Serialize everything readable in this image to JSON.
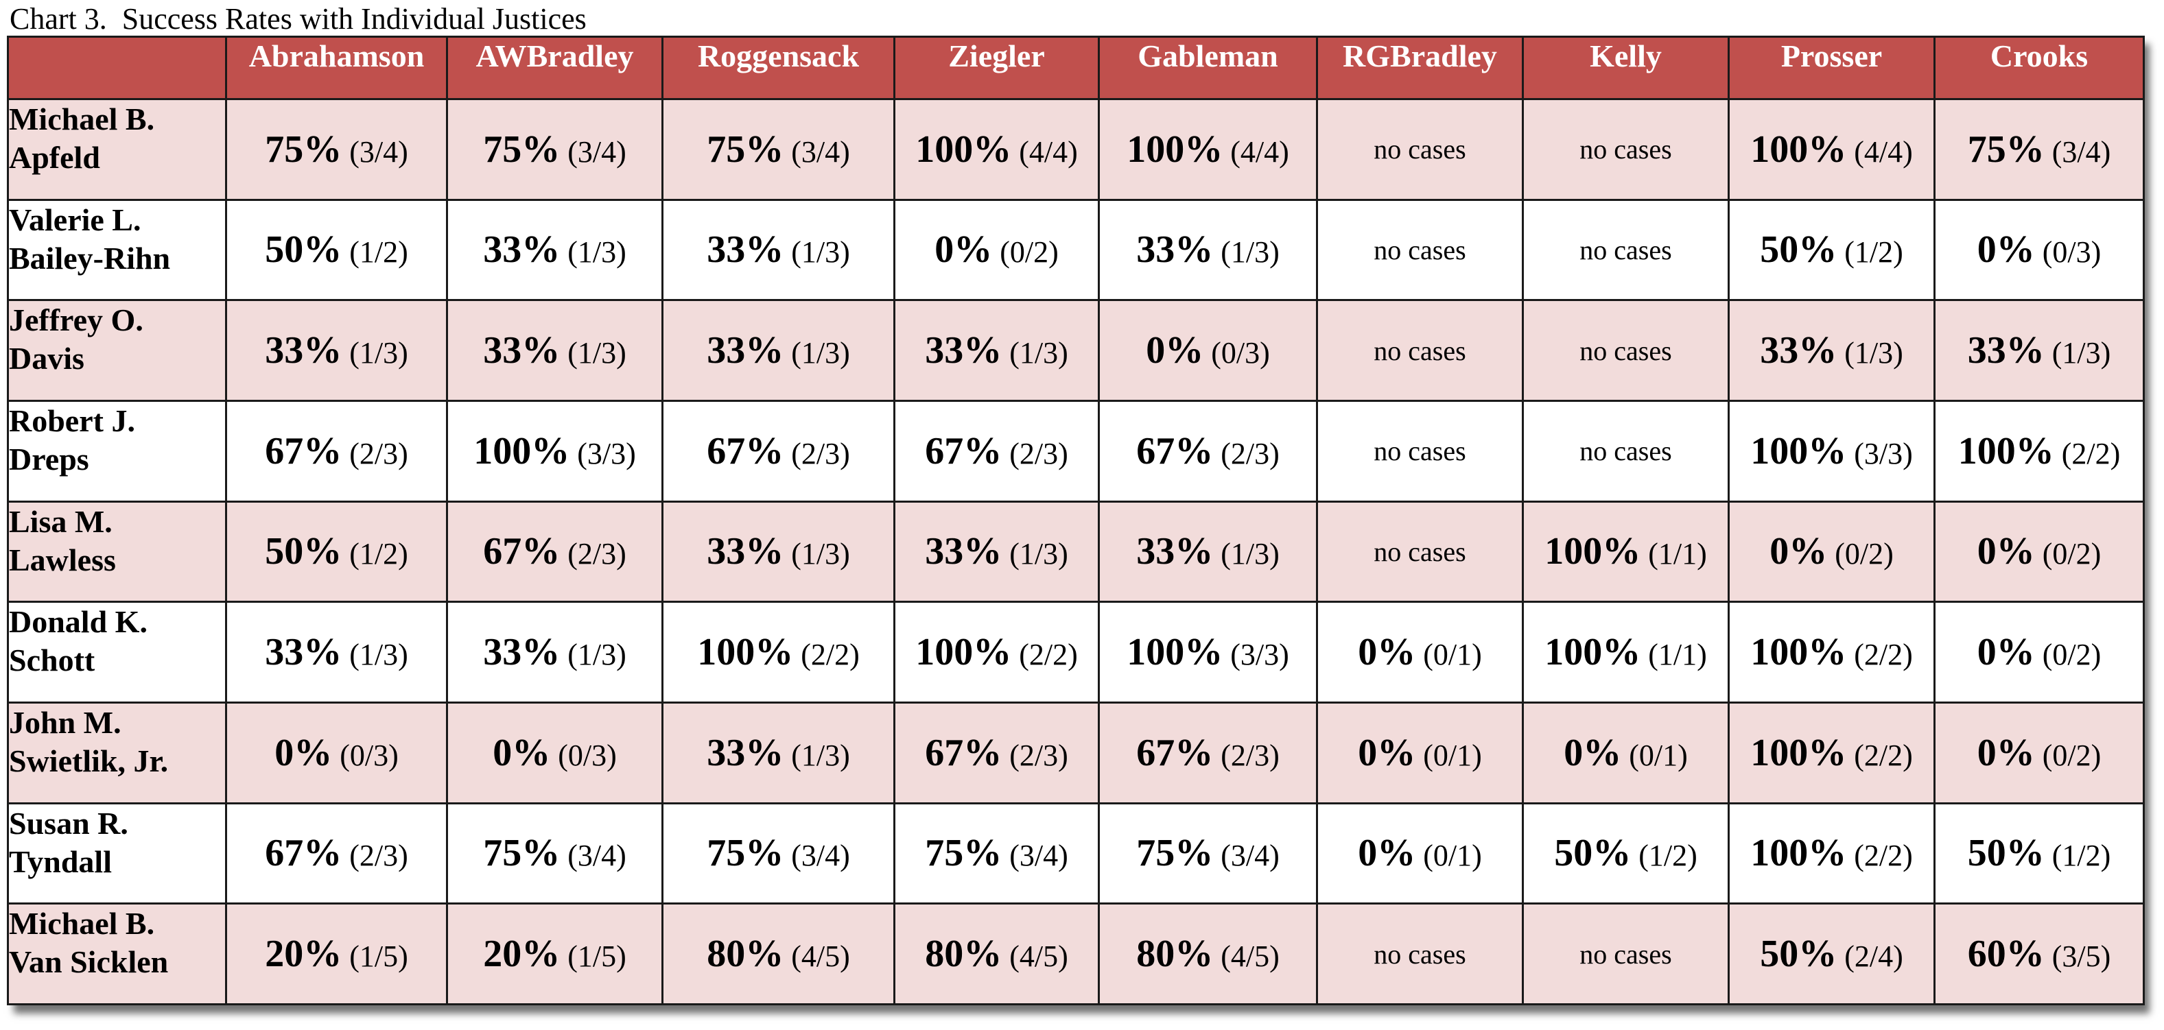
{
  "chart_data": {
    "type": "table",
    "title": "Chart 3.  Success Rates with Individual Justices",
    "columns": [
      "Abrahamson",
      "AWBradley",
      "Roggensack",
      "Ziegler",
      "Gableman",
      "RGBradley",
      "Kelly",
      "Prosser",
      "Crooks"
    ],
    "rows": [
      {
        "name": [
          "Michael B.",
          "Apfeld"
        ],
        "cells": [
          {
            "pct": "75%",
            "frac": "(3/4)"
          },
          {
            "pct": "75%",
            "frac": "(3/4)"
          },
          {
            "pct": "75%",
            "frac": "(3/4)"
          },
          {
            "pct": "100%",
            "frac": "(4/4)"
          },
          {
            "pct": "100%",
            "frac": "(4/4)"
          },
          {
            "text": "no cases"
          },
          {
            "text": "no cases"
          },
          {
            "pct": "100%",
            "frac": "(4/4)"
          },
          {
            "pct": "75%",
            "frac": "(3/4)"
          }
        ]
      },
      {
        "name": [
          "Valerie L.",
          "Bailey-Rihn"
        ],
        "cells": [
          {
            "pct": "50%",
            "frac": "(1/2)"
          },
          {
            "pct": "33%",
            "frac": "(1/3)"
          },
          {
            "pct": "33%",
            "frac": "(1/3)"
          },
          {
            "pct": "0%",
            "frac": "(0/2)"
          },
          {
            "pct": "33%",
            "frac": "(1/3)"
          },
          {
            "text": "no cases"
          },
          {
            "text": "no cases"
          },
          {
            "pct": "50%",
            "frac": "(1/2)"
          },
          {
            "pct": "0%",
            "frac": "(0/3)"
          }
        ]
      },
      {
        "name": [
          "Jeffrey O.",
          "Davis"
        ],
        "cells": [
          {
            "pct": "33%",
            "frac": "(1/3)"
          },
          {
            "pct": "33%",
            "frac": "(1/3)"
          },
          {
            "pct": "33%",
            "frac": "(1/3)"
          },
          {
            "pct": "33%",
            "frac": "(1/3)"
          },
          {
            "pct": "0%",
            "frac": "(0/3)"
          },
          {
            "text": "no cases"
          },
          {
            "text": "no cases"
          },
          {
            "pct": "33%",
            "frac": "(1/3)"
          },
          {
            "pct": "33%",
            "frac": "(1/3)"
          }
        ]
      },
      {
        "name": [
          "Robert J.",
          "Dreps"
        ],
        "cells": [
          {
            "pct": "67%",
            "frac": "(2/3)"
          },
          {
            "pct": "100%",
            "frac": "(3/3)"
          },
          {
            "pct": "67%",
            "frac": "(2/3)"
          },
          {
            "pct": "67%",
            "frac": "(2/3)"
          },
          {
            "pct": "67%",
            "frac": "(2/3)"
          },
          {
            "text": "no cases"
          },
          {
            "text": "no cases"
          },
          {
            "pct": "100%",
            "frac": "(3/3)"
          },
          {
            "pct": "100%",
            "frac": "(2/2)"
          }
        ]
      },
      {
        "name": [
          "Lisa M.",
          "Lawless"
        ],
        "cells": [
          {
            "pct": "50%",
            "frac": "(1/2)"
          },
          {
            "pct": "67%",
            "frac": "(2/3)"
          },
          {
            "pct": "33%",
            "frac": "(1/3)"
          },
          {
            "pct": "33%",
            "frac": "(1/3)"
          },
          {
            "pct": "33%",
            "frac": "(1/3)"
          },
          {
            "text": "no cases"
          },
          {
            "pct": "100%",
            "frac": "(1/1)"
          },
          {
            "pct": "0%",
            "frac": "(0/2)"
          },
          {
            "pct": "0%",
            "frac": "(0/2)"
          }
        ]
      },
      {
        "name": [
          "Donald K.",
          "Schott"
        ],
        "cells": [
          {
            "pct": "33%",
            "frac": "(1/3)"
          },
          {
            "pct": "33%",
            "frac": "(1/3)"
          },
          {
            "pct": "100%",
            "frac": "(2/2)"
          },
          {
            "pct": "100%",
            "frac": "(2/2)"
          },
          {
            "pct": "100%",
            "frac": "(3/3)"
          },
          {
            "pct": "0%",
            "frac": "(0/1)"
          },
          {
            "pct": "100%",
            "frac": "(1/1)"
          },
          {
            "pct": "100%",
            "frac": "(2/2)"
          },
          {
            "pct": "0%",
            "frac": "(0/2)"
          }
        ]
      },
      {
        "name": [
          "John M.",
          "Swietlik, Jr."
        ],
        "cells": [
          {
            "pct": "0%",
            "frac": "(0/3)"
          },
          {
            "pct": "0%",
            "frac": "(0/3)"
          },
          {
            "pct": "33%",
            "frac": "(1/3)"
          },
          {
            "pct": "67%",
            "frac": "(2/3)"
          },
          {
            "pct": "67%",
            "frac": "(2/3)"
          },
          {
            "pct": "0%",
            "frac": "(0/1)"
          },
          {
            "pct": "0%",
            "frac": "(0/1)"
          },
          {
            "pct": "100%",
            "frac": "(2/2)"
          },
          {
            "pct": "0%",
            "frac": "(0/2)"
          }
        ]
      },
      {
        "name": [
          "Susan R.",
          "Tyndall"
        ],
        "cells": [
          {
            "pct": "67%",
            "frac": "(2/3)"
          },
          {
            "pct": "75%",
            "frac": "(3/4)"
          },
          {
            "pct": "75%",
            "frac": "(3/4)"
          },
          {
            "pct": "75%",
            "frac": "(3/4)"
          },
          {
            "pct": "75%",
            "frac": "(3/4)"
          },
          {
            "pct": "0%",
            "frac": "(0/1)"
          },
          {
            "pct": "50%",
            "frac": "(1/2)"
          },
          {
            "pct": "100%",
            "frac": "(2/2)"
          },
          {
            "pct": "50%",
            "frac": "(1/2)"
          }
        ]
      },
      {
        "name": [
          "Michael B.",
          "Van Sicklen"
        ],
        "cells": [
          {
            "pct": "20%",
            "frac": "(1/5)"
          },
          {
            "pct": "20%",
            "frac": "(1/5)"
          },
          {
            "pct": "80%",
            "frac": "(4/5)"
          },
          {
            "pct": "80%",
            "frac": "(4/5)"
          },
          {
            "pct": "80%",
            "frac": "(4/5)"
          },
          {
            "text": "no cases"
          },
          {
            "text": "no cases"
          },
          {
            "pct": "50%",
            "frac": "(2/4)"
          },
          {
            "pct": "60%",
            "frac": "(3/5)"
          }
        ]
      }
    ],
    "colors": {
      "header_bg": "#c0504d",
      "header_text": "#ffffff",
      "band_row": "#f2dcdb",
      "plain_row": "#ffffff",
      "border": "#1a1a1a"
    }
  }
}
